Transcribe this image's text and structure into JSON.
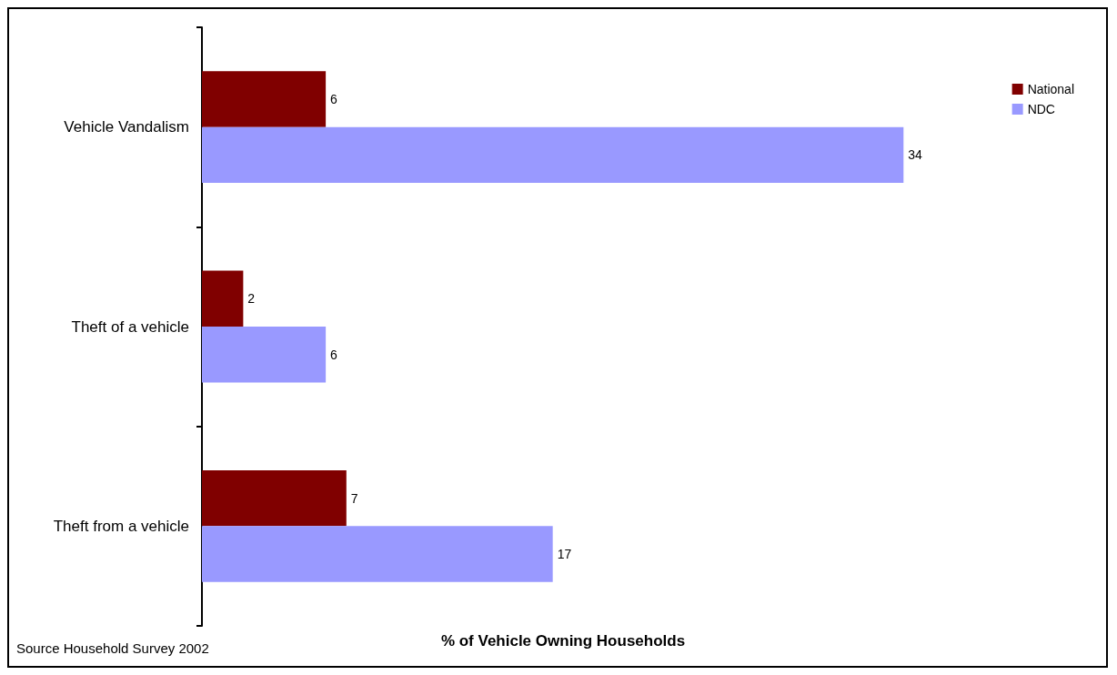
{
  "chart_data": {
    "type": "bar",
    "orientation": "horizontal",
    "xlabel": "% of Vehicle Owning Households",
    "categories": [
      "Vehicle Vandalism",
      "Theft of a vehicle",
      "Theft from a vehicle"
    ],
    "series": [
      {
        "name": "National",
        "color": "#800000",
        "values": [
          6,
          2,
          7
        ]
      },
      {
        "name": "NDC",
        "color": "#9999ff",
        "values": [
          34,
          6,
          17
        ]
      }
    ],
    "data_labels": true,
    "legend": "top right",
    "grid": false,
    "annotations": [
      "Source Household Survey 2002"
    ]
  }
}
